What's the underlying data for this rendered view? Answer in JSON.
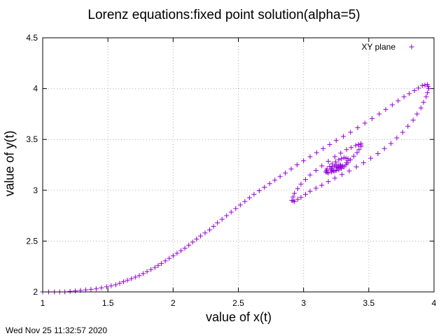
{
  "chart_data": {
    "type": "scatter",
    "title": "Lorenz equations:fixed point solution(alpha=5)",
    "xlabel": "value of x(t)",
    "ylabel": "value of y(t)",
    "xlim": [
      1,
      4
    ],
    "ylim": [
      2,
      4.5
    ],
    "xticks": [
      "1",
      "1.5",
      "2",
      "2.5",
      "3",
      "3.5",
      "4"
    ],
    "yticks": [
      "2",
      "2.5",
      "3",
      "3.5",
      "4",
      "4.5"
    ],
    "grid": true,
    "legend_position": "top-right",
    "marker": "plus",
    "series": [
      {
        "name": "XY plane",
        "color": "#9400d3",
        "x": [
          1.0,
          1.09,
          1.17,
          1.25,
          1.33,
          1.41,
          1.49,
          1.56,
          1.62,
          1.68,
          1.74,
          1.8,
          1.86,
          1.91,
          1.97,
          2.03,
          2.09,
          2.15,
          2.21,
          2.28,
          2.34,
          2.41,
          2.48,
          2.55,
          2.62,
          2.7,
          2.78,
          2.86,
          2.95,
          3.05,
          3.15,
          3.25,
          3.36,
          3.47,
          3.58,
          3.68,
          3.77,
          3.85,
          3.91,
          3.95,
          3.96,
          3.94,
          3.9,
          3.84,
          3.76,
          3.67,
          3.57,
          3.46,
          3.35,
          3.24,
          3.14,
          3.05,
          2.98,
          2.93,
          2.91,
          2.93,
          2.98,
          3.05,
          3.14,
          3.24,
          3.33,
          3.4,
          3.44,
          3.44,
          3.41,
          3.36,
          3.3,
          3.24,
          3.19,
          3.17,
          3.18,
          3.22,
          3.27,
          3.31,
          3.34,
          3.34,
          3.31,
          3.27,
          3.23,
          3.21,
          3.22,
          3.25,
          3.28,
          3.29,
          3.27,
          3.25
        ],
        "y": [
          2.0,
          2.0,
          2.0,
          2.01,
          2.02,
          2.03,
          2.05,
          2.07,
          2.1,
          2.13,
          2.16,
          2.2,
          2.24,
          2.28,
          2.33,
          2.38,
          2.43,
          2.49,
          2.55,
          2.61,
          2.68,
          2.75,
          2.82,
          2.89,
          2.96,
          3.03,
          3.1,
          3.17,
          3.25,
          3.33,
          3.41,
          3.49,
          3.57,
          3.66,
          3.75,
          3.84,
          3.92,
          3.98,
          4.03,
          4.04,
          4.0,
          3.92,
          3.81,
          3.69,
          3.57,
          3.46,
          3.36,
          3.27,
          3.19,
          3.12,
          3.05,
          2.99,
          2.93,
          2.89,
          2.9,
          2.97,
          3.06,
          3.15,
          3.24,
          3.33,
          3.4,
          3.44,
          3.46,
          3.43,
          3.37,
          3.3,
          3.24,
          3.19,
          3.17,
          3.18,
          3.21,
          3.26,
          3.3,
          3.32,
          3.31,
          3.27,
          3.23,
          3.2,
          3.19,
          3.2,
          3.23,
          3.25,
          3.25,
          3.23,
          3.22,
          3.23
        ]
      }
    ]
  },
  "footer": {
    "timestamp": "Wed Nov 25 11:32:57 2020"
  }
}
